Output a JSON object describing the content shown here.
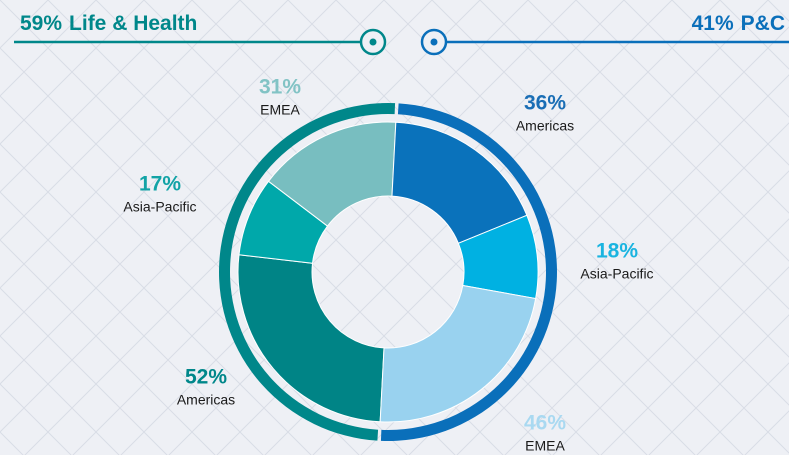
{
  "chart_data": {
    "type": "donut",
    "series": [
      {
        "name": "Life & Health",
        "value": 59,
        "value_label": "59%",
        "color": "#00878a",
        "categories": [
          "Americas",
          "Asia-Pacific",
          "EMEA"
        ],
        "values": [
          52,
          17,
          31
        ],
        "value_labels": [
          "52%",
          "17%",
          "31%"
        ],
        "colors": [
          "#008486",
          "#00a8aa",
          "#78bec0"
        ],
        "label_colors": [
          "#00878a",
          "#12a3a6",
          "#82c3c5"
        ]
      },
      {
        "name": "P&C",
        "value": 41,
        "value_label": "41%",
        "color": "#0a6fba",
        "categories": [
          "Americas",
          "Asia-Pacific",
          "EMEA"
        ],
        "values": [
          36,
          18,
          46
        ],
        "value_labels": [
          "36%",
          "18%",
          "46%"
        ],
        "colors": [
          "#0a72bb",
          "#00b1e2",
          "#99d2ef"
        ],
        "label_colors": [
          "#1a6eb5",
          "#1ab4e0",
          "#a9d9f1"
        ]
      }
    ]
  }
}
